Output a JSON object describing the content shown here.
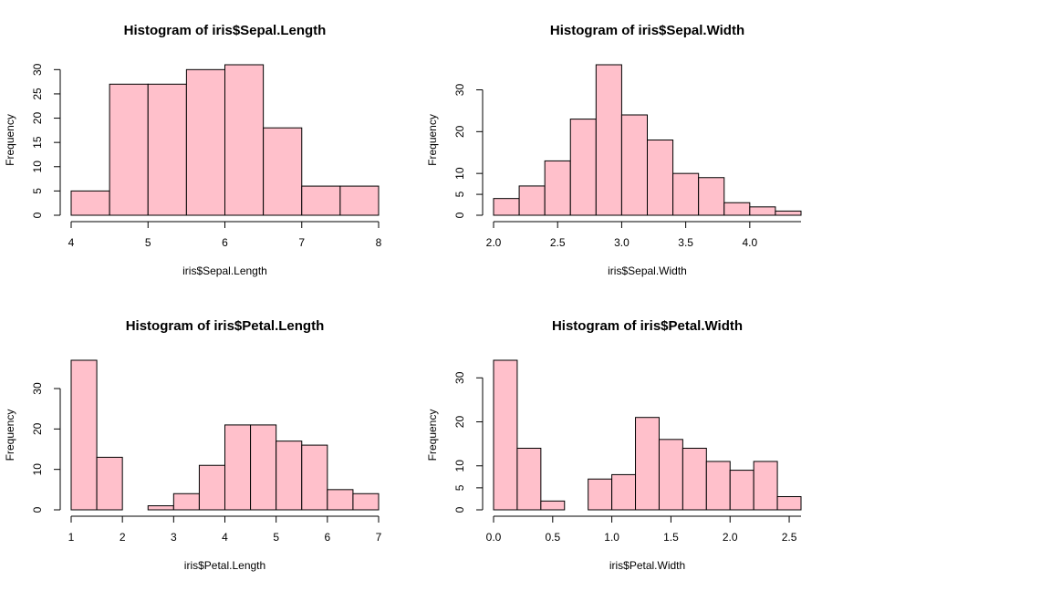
{
  "chart_data": [
    {
      "type": "histogram",
      "title": "Histogram of iris$Sepal.Length",
      "xlabel": "iris$Sepal.Length",
      "ylabel": "Frequency",
      "bins": [
        4,
        4.5,
        5,
        5.5,
        6,
        6.5,
        7,
        7.5,
        8
      ],
      "values": [
        5,
        27,
        27,
        30,
        31,
        18,
        6,
        6
      ],
      "color": "#ffc0cb",
      "xlim": [
        4,
        8
      ],
      "ylim": [
        0,
        31
      ],
      "xticks": [
        4,
        5,
        6,
        7,
        8
      ],
      "yticks": [
        0,
        5,
        10,
        15,
        20,
        25,
        30
      ]
    },
    {
      "type": "histogram",
      "title": "Histogram of iris$Sepal.Width",
      "xlabel": "iris$Sepal.Width",
      "ylabel": "Frequency",
      "bins": [
        2.0,
        2.2,
        2.4,
        2.6,
        2.8,
        3.0,
        3.2,
        3.4,
        3.6,
        3.8,
        4.0,
        4.2,
        4.4
      ],
      "values": [
        4,
        7,
        13,
        23,
        36,
        24,
        18,
        10,
        9,
        3,
        2,
        1
      ],
      "color": "#ffc0cb",
      "xlim": [
        2.0,
        4.4
      ],
      "ylim": [
        0,
        36
      ],
      "xticks": [
        {
          "value": 2,
          "label": "2.0"
        },
        2.5,
        {
          "value": 3,
          "label": "3.0"
        },
        3.5,
        {
          "value": 4,
          "label": "4.0"
        }
      ],
      "yticks": [
        0,
        5,
        10,
        20,
        30
      ]
    },
    {
      "type": "histogram",
      "title": "Histogram of iris$Petal.Length",
      "xlabel": "iris$Petal.Length",
      "ylabel": "Frequency",
      "bins": [
        1,
        1.5,
        2,
        2.5,
        3,
        3.5,
        4,
        4.5,
        5,
        5.5,
        6,
        6.5,
        7
      ],
      "values": [
        37,
        13,
        0,
        1,
        4,
        11,
        21,
        21,
        17,
        16,
        5,
        4
      ],
      "color": "#ffc0cb",
      "xlim": [
        1,
        7
      ],
      "ylim": [
        0,
        37
      ],
      "xticks": [
        1,
        2,
        3,
        4,
        5,
        6,
        7
      ],
      "yticks": [
        0,
        10,
        20,
        30
      ]
    },
    {
      "type": "histogram",
      "title": "Histogram of iris$Petal.Width",
      "xlabel": "iris$Petal.Width",
      "ylabel": "Frequency",
      "bins": [
        0,
        0.2,
        0.4,
        0.6,
        0.8,
        1.0,
        1.2,
        1.4,
        1.6,
        1.8,
        2.0,
        2.2,
        2.4,
        2.6
      ],
      "values": [
        34,
        14,
        2,
        0,
        7,
        8,
        21,
        16,
        14,
        11,
        9,
        11,
        3
      ],
      "color": "#ffc0cb",
      "xlim": [
        0,
        2.6
      ],
      "ylim": [
        0,
        34
      ],
      "xticks": [
        {
          "value": 0,
          "label": "0.0"
        },
        0.5,
        {
          "value": 1,
          "label": "1.0"
        },
        1.5,
        {
          "value": 2,
          "label": "2.0"
        },
        2.5
      ],
      "yticks": [
        0,
        5,
        10,
        20,
        30
      ]
    }
  ]
}
